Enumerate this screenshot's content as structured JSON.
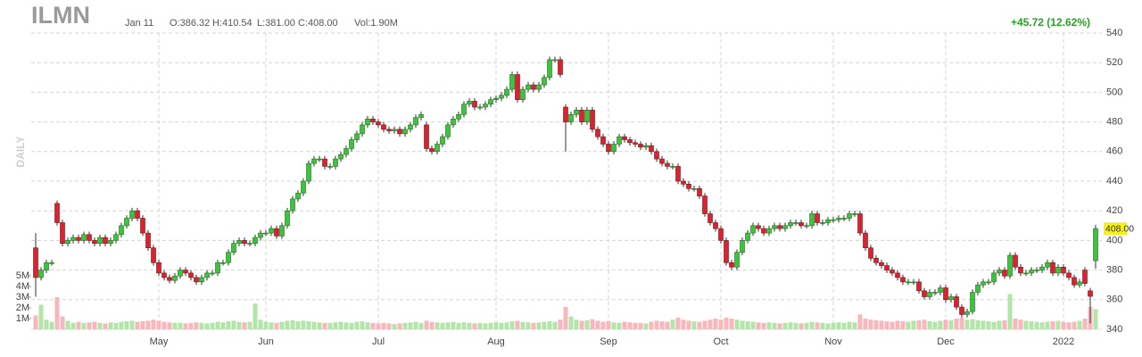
{
  "chart_data": {
    "type": "candlestick",
    "title": "ILMN",
    "date": "Jan 11",
    "open_label": "O:386.32",
    "high_label": "H:410.54",
    "low_label": "L:381.00",
    "close_label": "C:408.00",
    "volume_label": "Vol:1.90M",
    "change_label": "+45.72 (12.62%)",
    "period_label": "DAILY",
    "last_label": "408.00",
    "up_color": "#3cc43c",
    "down_color": "#d92330",
    "up_volume_color": "#b4e4aa",
    "down_volume_color": "#f5b8bc",
    "grid": true,
    "ylim": [
      340,
      540
    ],
    "yticks": [
      340,
      360,
      380,
      400,
      420,
      440,
      460,
      480,
      500,
      520,
      540
    ],
    "vlim": [
      0,
      5000000
    ],
    "vticks": [
      {
        "value": 1000000,
        "label": "1M"
      },
      {
        "value": 2000000,
        "label": "2M"
      },
      {
        "value": 3000000,
        "label": "3M"
      },
      {
        "value": 4000000,
        "label": "4M"
      },
      {
        "value": 5000000,
        "label": "5M"
      }
    ],
    "categories": [
      null,
      null,
      null,
      null,
      null,
      null,
      null,
      null,
      null,
      null,
      null,
      null,
      null,
      null,
      null,
      null,
      null,
      null,
      null,
      null,
      null,
      null,
      null,
      "May",
      null,
      null,
      null,
      null,
      null,
      null,
      null,
      null,
      null,
      null,
      null,
      null,
      null,
      null,
      null,
      null,
      null,
      null,
      null,
      "Jun",
      null,
      null,
      null,
      null,
      null,
      null,
      null,
      null,
      null,
      null,
      null,
      null,
      null,
      null,
      null,
      null,
      null,
      null,
      null,
      null,
      "Jul",
      null,
      null,
      null,
      null,
      null,
      null,
      null,
      null,
      null,
      null,
      null,
      null,
      null,
      null,
      null,
      null,
      null,
      null,
      null,
      null,
      null,
      "Aug",
      null,
      null,
      null,
      null,
      null,
      null,
      null,
      null,
      null,
      null,
      null,
      null,
      null,
      null,
      null,
      null,
      null,
      null,
      null,
      null,
      "Sep",
      null,
      null,
      null,
      null,
      null,
      null,
      null,
      null,
      null,
      null,
      null,
      null,
      null,
      null,
      null,
      null,
      null,
      null,
      null,
      null,
      "Oct",
      null,
      null,
      null,
      null,
      null,
      null,
      null,
      null,
      null,
      null,
      null,
      null,
      null,
      null,
      null,
      null,
      null,
      null,
      null,
      null,
      "Nov",
      null,
      null,
      null,
      null,
      null,
      null,
      null,
      null,
      null,
      null,
      null,
      null,
      null,
      null,
      null,
      null,
      null,
      null,
      null,
      null,
      "Dec",
      null,
      null,
      null,
      null,
      null,
      null,
      null,
      null,
      null,
      null,
      null,
      null,
      null,
      null,
      null,
      null,
      null,
      null,
      null,
      null,
      null,
      "2022",
      null,
      null,
      null,
      null,
      null,
      null
    ],
    "open": [
      395,
      375,
      380,
      385,
      425,
      412,
      398,
      400,
      402,
      400,
      404,
      400,
      398,
      402,
      398,
      400,
      404,
      410,
      415,
      420,
      415,
      405,
      395,
      385,
      378,
      375,
      373,
      376,
      380,
      378,
      375,
      372,
      375,
      378,
      378,
      385,
      385,
      392,
      398,
      400,
      398,
      398,
      402,
      405,
      405,
      408,
      403,
      410,
      420,
      428,
      432,
      440,
      452,
      455,
      455,
      450,
      450,
      455,
      458,
      462,
      468,
      472,
      478,
      482,
      480,
      478,
      475,
      474,
      475,
      472,
      475,
      478,
      483,
      478,
      462,
      460,
      465,
      470,
      478,
      482,
      485,
      492,
      494,
      490,
      490,
      492,
      495,
      496,
      498,
      502,
      512,
      495,
      502,
      505,
      502,
      505,
      510,
      522,
      522,
      490,
      480,
      485,
      488,
      480,
      488,
      475,
      470,
      465,
      460,
      465,
      470,
      468,
      466,
      465,
      463,
      464,
      460,
      455,
      452,
      450,
      450,
      440,
      438,
      435,
      435,
      430,
      418,
      412,
      408,
      400,
      385,
      382,
      392,
      400,
      405,
      410,
      408,
      405,
      408,
      410,
      408,
      410,
      412,
      412,
      410,
      410,
      418,
      412,
      412,
      414,
      414,
      415,
      415,
      418,
      418,
      405,
      395,
      388,
      385,
      383,
      380,
      378,
      375,
      372,
      372,
      372,
      366,
      362,
      365,
      365,
      368,
      360,
      362,
      355,
      350,
      352,
      365,
      370,
      372,
      372,
      378,
      380,
      376,
      390,
      382,
      378,
      378,
      380,
      380,
      382,
      385,
      378,
      382,
      378,
      375,
      370,
      380,
      366,
      386.32
    ],
    "high": [
      405,
      382,
      387,
      387,
      427,
      414,
      402,
      404,
      404,
      406,
      406,
      402,
      404,
      404,
      402,
      406,
      412,
      417,
      422,
      422,
      417,
      407,
      397,
      387,
      380,
      377,
      378,
      382,
      382,
      380,
      377,
      377,
      380,
      380,
      387,
      387,
      394,
      400,
      402,
      402,
      400,
      404,
      407,
      407,
      410,
      410,
      412,
      422,
      430,
      434,
      442,
      454,
      457,
      457,
      457,
      452,
      457,
      460,
      464,
      470,
      474,
      480,
      484,
      484,
      482,
      480,
      477,
      477,
      477,
      477,
      480,
      485,
      487,
      480,
      464,
      467,
      472,
      480,
      484,
      487,
      494,
      496,
      496,
      492,
      494,
      497,
      498,
      500,
      504,
      514,
      514,
      504,
      507,
      507,
      507,
      512,
      524,
      524,
      524,
      492,
      487,
      490,
      490,
      490,
      490,
      477,
      472,
      467,
      467,
      472,
      472,
      470,
      468,
      467,
      466,
      466,
      462,
      457,
      454,
      452,
      452,
      442,
      440,
      437,
      437,
      432,
      420,
      414,
      410,
      402,
      387,
      394,
      402,
      407,
      412,
      412,
      410,
      410,
      412,
      412,
      412,
      414,
      414,
      414,
      412,
      420,
      420,
      414,
      416,
      416,
      417,
      417,
      420,
      420,
      420,
      407,
      397,
      390,
      387,
      385,
      382,
      380,
      377,
      374,
      374,
      374,
      368,
      367,
      367,
      370,
      370,
      364,
      364,
      357,
      354,
      367,
      372,
      374,
      374,
      380,
      382,
      382,
      392,
      392,
      384,
      380,
      382,
      382,
      384,
      387,
      387,
      384,
      384,
      380,
      377,
      374,
      382,
      368,
      410.54
    ],
    "low": [
      362,
      373,
      378,
      383,
      410,
      396,
      396,
      398,
      398,
      398,
      398,
      396,
      396,
      396,
      396,
      398,
      402,
      408,
      413,
      413,
      403,
      393,
      383,
      376,
      373,
      371,
      371,
      374,
      376,
      373,
      370,
      370,
      373,
      376,
      376,
      383,
      383,
      390,
      396,
      396,
      396,
      396,
      400,
      403,
      403,
      401,
      401,
      408,
      418,
      426,
      430,
      438,
      450,
      453,
      448,
      448,
      448,
      453,
      456,
      460,
      466,
      470,
      476,
      478,
      476,
      473,
      472,
      472,
      470,
      470,
      473,
      476,
      481,
      460,
      458,
      458,
      463,
      468,
      476,
      480,
      483,
      490,
      488,
      488,
      488,
      490,
      493,
      494,
      496,
      500,
      493,
      493,
      500,
      500,
      500,
      503,
      508,
      520,
      510,
      460,
      478,
      483,
      478,
      478,
      473,
      468,
      463,
      458,
      458,
      463,
      466,
      464,
      463,
      461,
      461,
      458,
      453,
      450,
      448,
      448,
      438,
      436,
      433,
      433,
      428,
      416,
      410,
      406,
      398,
      383,
      380,
      380,
      390,
      398,
      403,
      406,
      403,
      403,
      406,
      406,
      406,
      408,
      410,
      408,
      408,
      408,
      410,
      410,
      410,
      412,
      412,
      413,
      413,
      416,
      403,
      393,
      386,
      383,
      381,
      378,
      376,
      373,
      370,
      370,
      370,
      364,
      360,
      360,
      363,
      363,
      358,
      358,
      353,
      348,
      348,
      350,
      363,
      368,
      370,
      370,
      376,
      374,
      374,
      380,
      376,
      376,
      376,
      378,
      378,
      380,
      376,
      376,
      376,
      373,
      368,
      368,
      369,
      344,
      381
    ],
    "close": [
      375,
      380,
      385,
      385,
      412,
      398,
      400,
      402,
      400,
      404,
      400,
      398,
      402,
      398,
      400,
      404,
      410,
      415,
      420,
      415,
      405,
      395,
      385,
      378,
      375,
      373,
      376,
      380,
      378,
      375,
      372,
      375,
      378,
      378,
      385,
      385,
      392,
      398,
      400,
      398,
      398,
      402,
      405,
      405,
      408,
      403,
      410,
      420,
      428,
      432,
      440,
      452,
      455,
      455,
      450,
      450,
      455,
      458,
      462,
      468,
      472,
      478,
      482,
      480,
      478,
      475,
      474,
      475,
      472,
      475,
      478,
      483,
      485,
      462,
      460,
      465,
      470,
      478,
      482,
      485,
      492,
      494,
      490,
      490,
      492,
      495,
      496,
      498,
      502,
      512,
      495,
      502,
      505,
      502,
      505,
      510,
      522,
      522,
      512,
      480,
      485,
      488,
      480,
      488,
      475,
      470,
      465,
      460,
      465,
      470,
      468,
      466,
      465,
      463,
      464,
      460,
      455,
      452,
      450,
      450,
      440,
      438,
      435,
      435,
      430,
      418,
      412,
      408,
      400,
      385,
      382,
      392,
      400,
      405,
      410,
      408,
      405,
      408,
      410,
      408,
      410,
      412,
      412,
      410,
      410,
      418,
      412,
      412,
      414,
      414,
      415,
      415,
      418,
      418,
      405,
      395,
      388,
      385,
      383,
      380,
      378,
      375,
      372,
      372,
      372,
      366,
      362,
      365,
      365,
      368,
      360,
      362,
      355,
      350,
      352,
      365,
      370,
      372,
      372,
      378,
      380,
      376,
      390,
      382,
      378,
      378,
      380,
      380,
      382,
      385,
      378,
      382,
      378,
      375,
      370,
      372,
      371,
      362.28,
      408
    ],
    "volume": [
      1300000,
      2300000,
      900000,
      700000,
      3000000,
      1200000,
      800000,
      600000,
      700000,
      600000,
      650000,
      700000,
      600000,
      550000,
      650000,
      600000,
      700000,
      750000,
      800000,
      700000,
      750000,
      800000,
      900000,
      800000,
      700000,
      650000,
      600000,
      600000,
      550000,
      600000,
      650000,
      600000,
      550000,
      600000,
      700000,
      650000,
      750000,
      800000,
      700000,
      650000,
      700000,
      2400000,
      900000,
      700000,
      650000,
      600000,
      700000,
      800000,
      850000,
      750000,
      800000,
      750000,
      700000,
      650000,
      600000,
      600000,
      650000,
      700000,
      650000,
      600000,
      700000,
      750000,
      650000,
      600000,
      550000,
      600000,
      550000,
      500000,
      550000,
      600000,
      650000,
      700000,
      600000,
      800000,
      700000,
      650000,
      600000,
      650000,
      700000,
      600000,
      650000,
      600000,
      550000,
      600000,
      550000,
      600000,
      650000,
      600000,
      650000,
      750000,
      800000,
      700000,
      650000,
      600000,
      650000,
      700000,
      750000,
      700000,
      900000,
      2100000,
      1200000,
      900000,
      800000,
      850000,
      950000,
      800000,
      700000,
      750000,
      650000,
      600000,
      700000,
      650000,
      600000,
      600000,
      550000,
      700000,
      800000,
      750000,
      700000,
      900000,
      1100000,
      900000,
      800000,
      750000,
      700000,
      800000,
      900000,
      1000000,
      900000,
      1100000,
      1000000,
      900000,
      800000,
      750000,
      700000,
      650000,
      600000,
      650000,
      600000,
      550000,
      600000,
      650000,
      600000,
      550000,
      600000,
      700000,
      650000,
      600000,
      550000,
      600000,
      650000,
      600000,
      700000,
      650000,
      1400000,
      1000000,
      900000,
      850000,
      800000,
      750000,
      700000,
      800000,
      750000,
      700000,
      800000,
      850000,
      900000,
      750000,
      700000,
      800000,
      900000,
      850000,
      1000000,
      1100000,
      900000,
      950000,
      850000,
      800000,
      750000,
      700000,
      800000,
      850000,
      3300000,
      1000000,
      900000,
      800000,
      750000,
      700000,
      650000,
      700000,
      750000,
      800000,
      700000,
      650000,
      700000,
      800000,
      1000000,
      2100000,
      1900000
    ]
  }
}
